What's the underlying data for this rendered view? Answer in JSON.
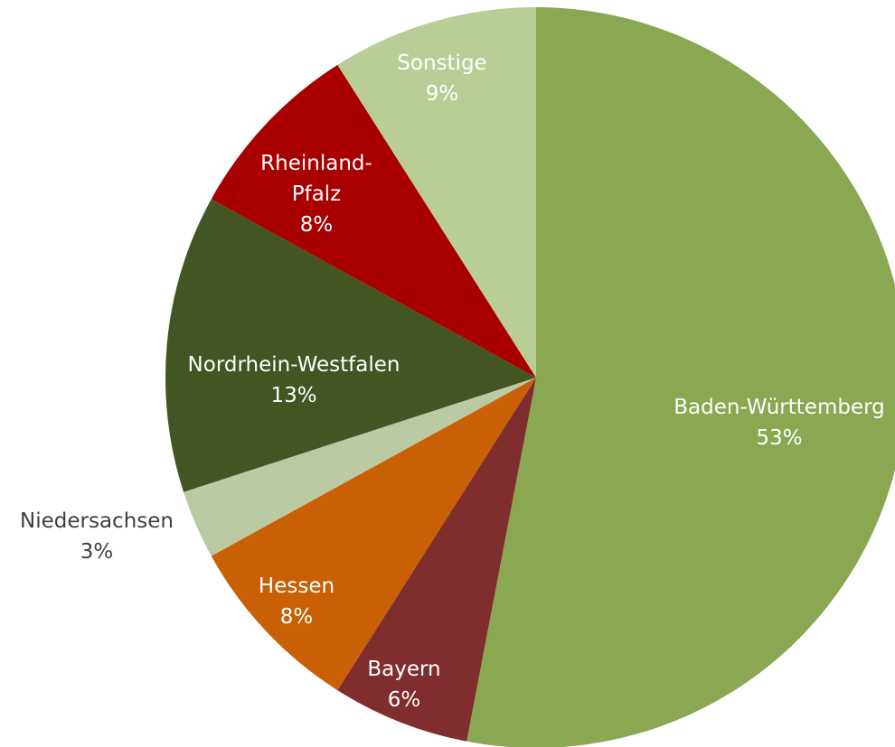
{
  "chart_data": {
    "type": "pie",
    "categories": [
      "Baden-Württemberg",
      "Bayern",
      "Hessen",
      "Niedersachsen",
      "Nordrhein-Westfalen",
      "Rheinland-Pfalz",
      "Sonstige"
    ],
    "values": [
      53,
      6,
      8,
      3,
      13,
      8,
      9
    ],
    "value_labels": [
      "53%",
      "6%",
      "8%",
      "3%",
      "13%",
      "8%",
      "9%"
    ],
    "colors": [
      "#8aa752",
      "#7f2d2d",
      "#c96006",
      "#bccaa4",
      "#445524",
      "#a80000",
      "#b9cd96"
    ]
  }
}
